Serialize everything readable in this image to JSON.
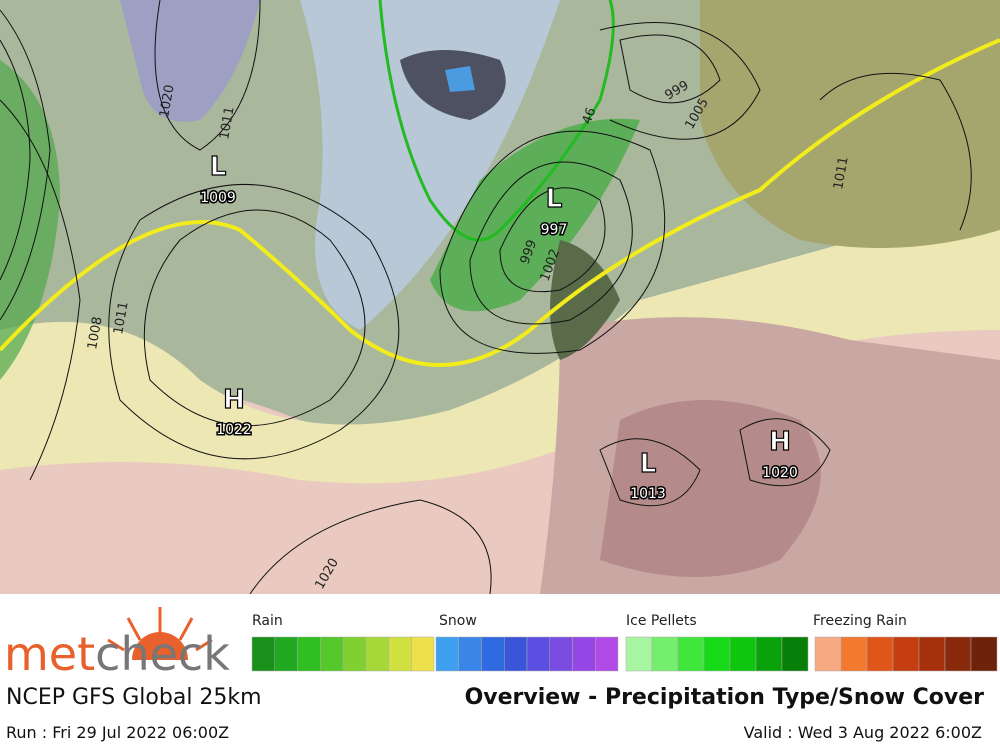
{
  "logo": {
    "parts": [
      "met",
      "check"
    ]
  },
  "model": "NCEP GFS Global 25km",
  "title": "Overview - Precipitation Type/Snow Cover",
  "run": "Run : Fri 29 Jul 2022 06:00Z",
  "valid": "Valid : Wed 3 Aug 2022 6:00Z",
  "legend": [
    "Rain",
    "Snow",
    "Ice Pellets",
    "Freezing Rain"
  ],
  "pressure_centers": [
    {
      "symbol": "L",
      "pressure": "1009"
    },
    {
      "symbol": "L",
      "pressure": "997"
    },
    {
      "symbol": "H",
      "pressure": "1022"
    },
    {
      "symbol": "L",
      "pressure": "1013"
    },
    {
      "symbol": "H",
      "pressure": "1020"
    }
  ],
  "isobar_labels": [
    "1020",
    "1011",
    "1008",
    "1011",
    "999",
    "1005",
    "999",
    "1002",
    "1011",
    "1020",
    "46"
  ]
}
